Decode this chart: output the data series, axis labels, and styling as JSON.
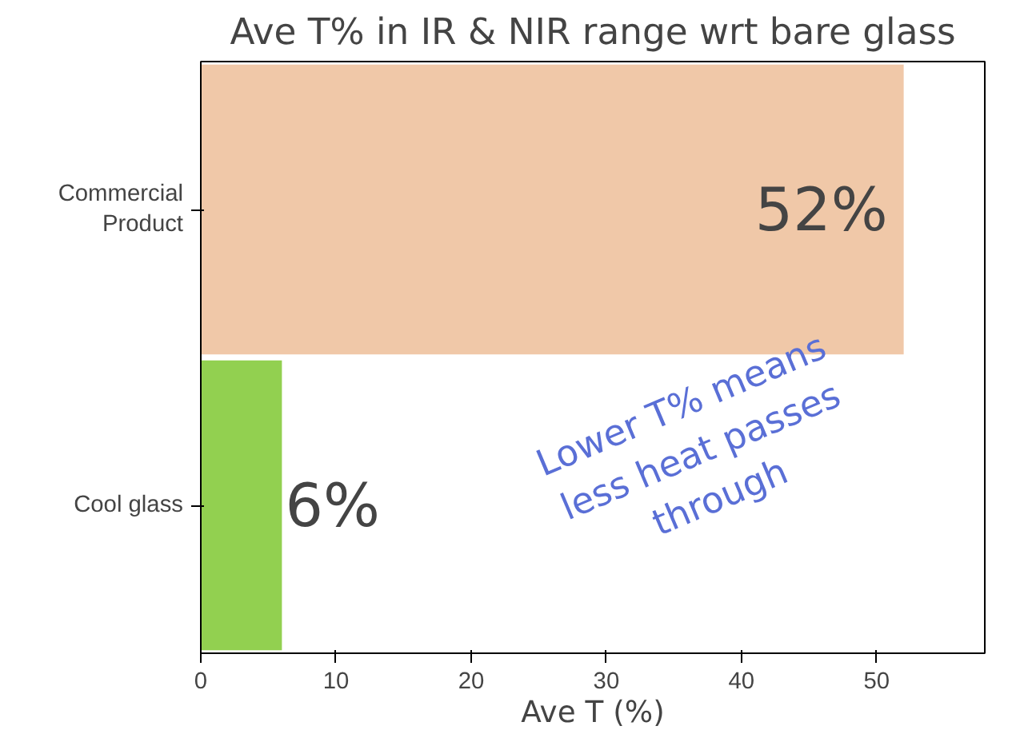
{
  "chart_data": {
    "type": "bar",
    "orientation": "horizontal",
    "title": "Ave T% in IR & NIR range wrt bare glass",
    "xlabel": "Ave T (%)",
    "categories": [
      "Commercial\nProduct",
      "Cool glass"
    ],
    "values": [
      52,
      6
    ],
    "colors": [
      "#f0c8a8",
      "#92d050"
    ],
    "value_labels": [
      "52%",
      "6%"
    ],
    "xlim": [
      0,
      58
    ],
    "xticks": [
      0,
      10,
      20,
      30,
      40,
      50
    ],
    "grid": false,
    "annotations": [
      "Lower T% means\nless heat passes\nthrough"
    ]
  }
}
